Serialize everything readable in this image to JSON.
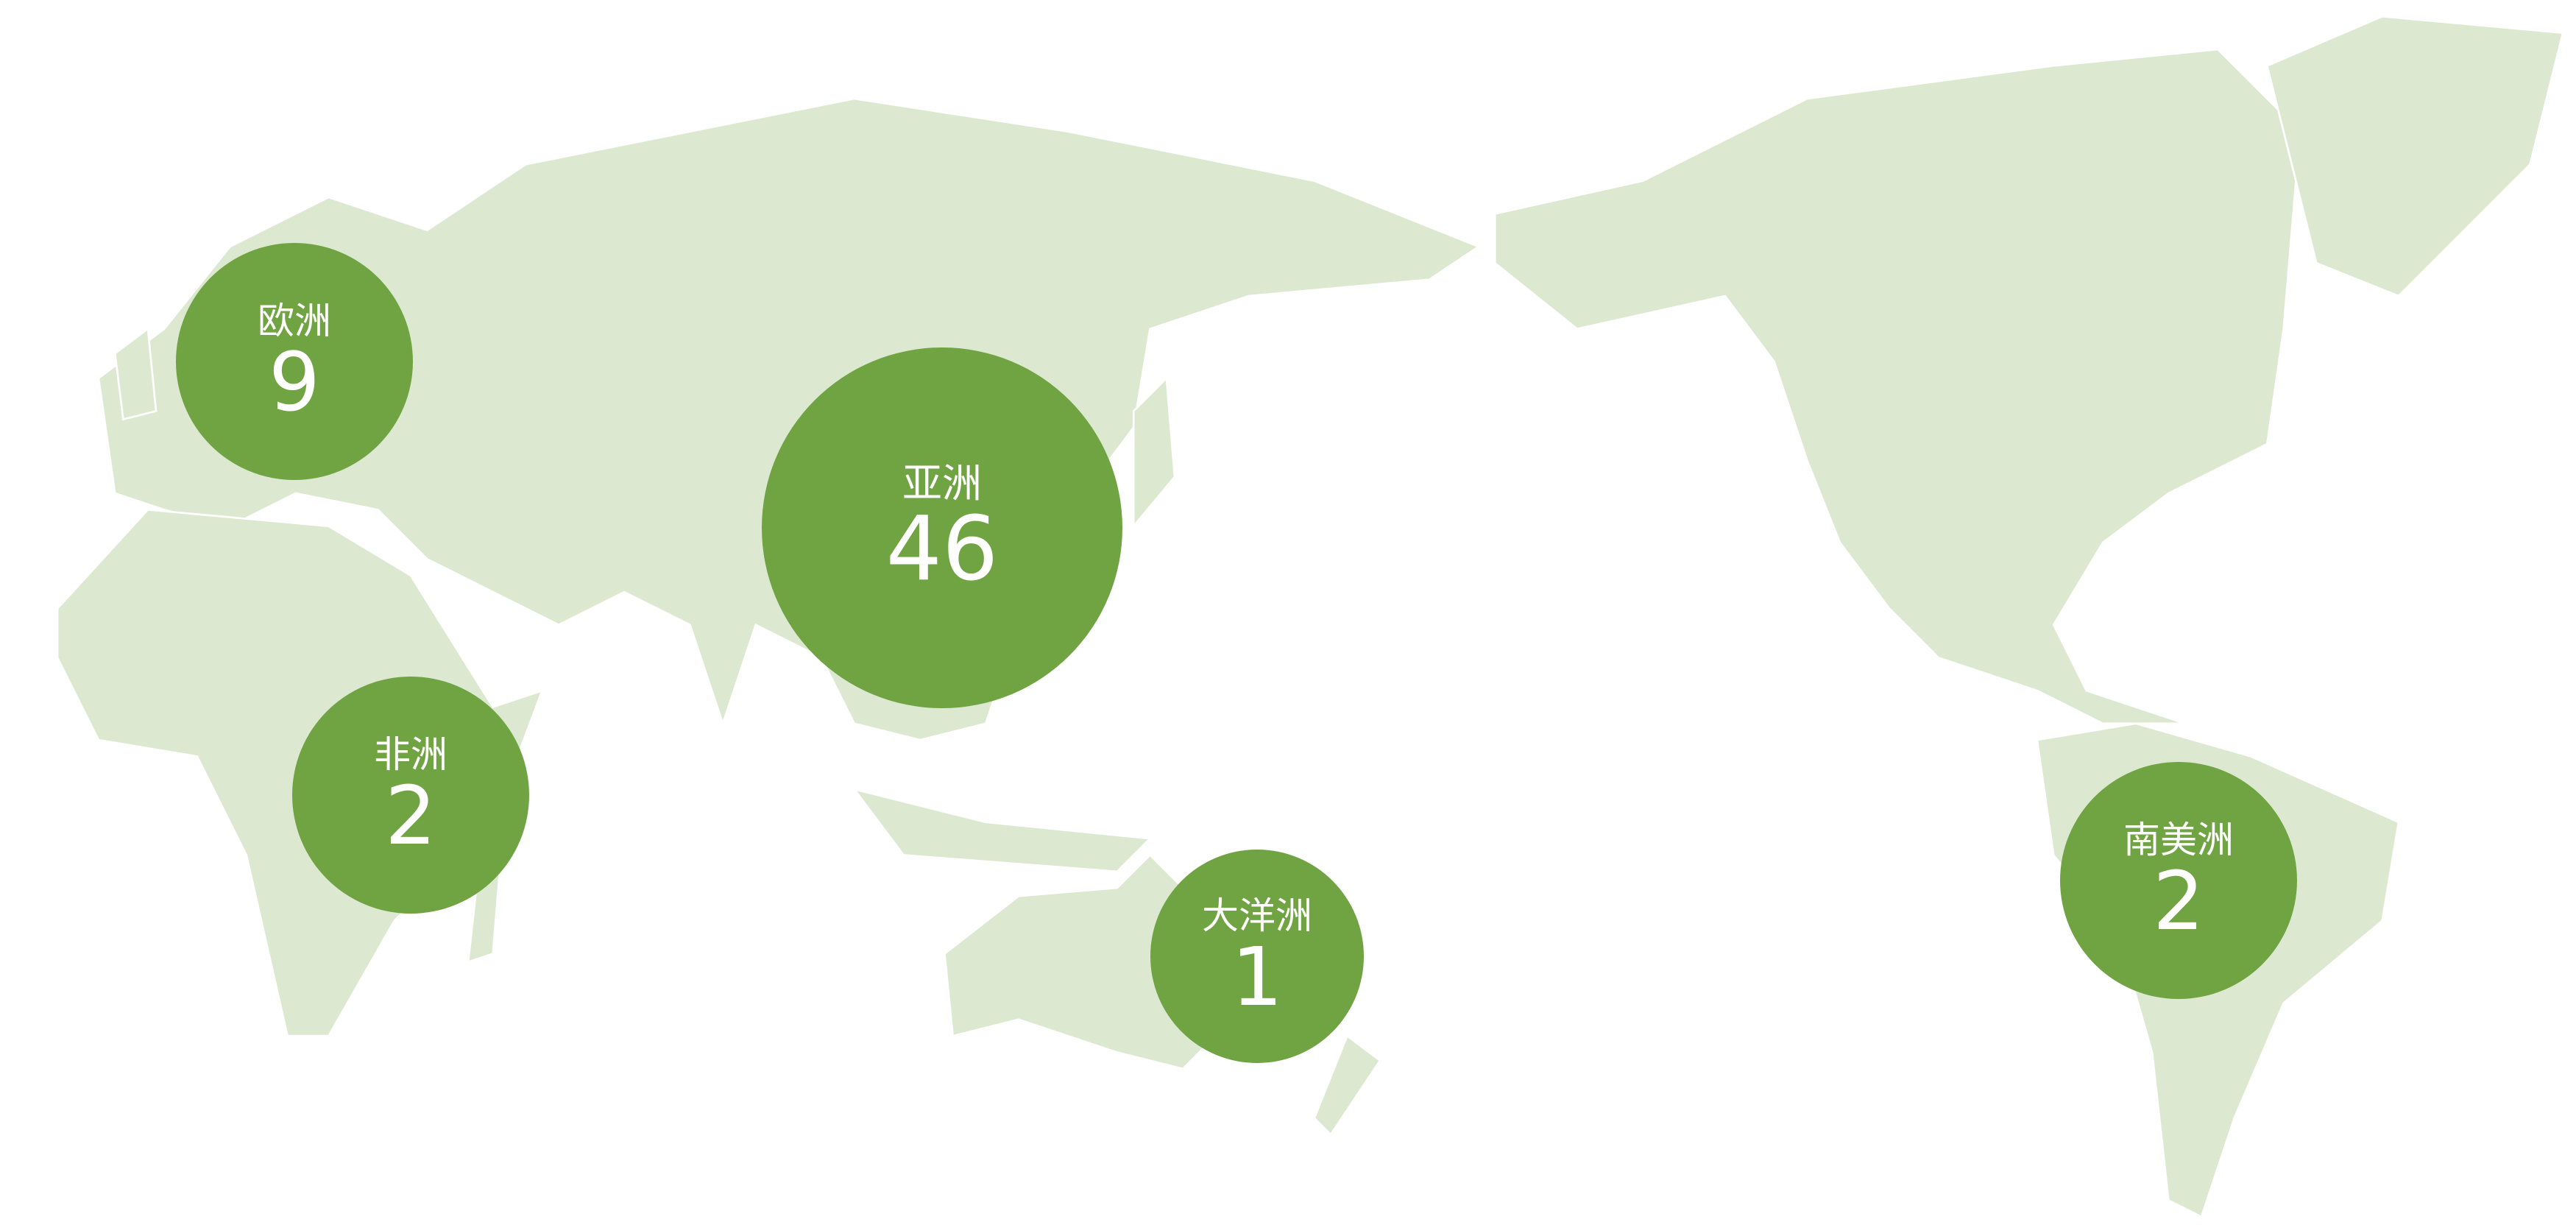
{
  "colors": {
    "bubble": "#70a342",
    "land": "#dce9d0",
    "background": "#ffffff"
  },
  "regions": [
    {
      "id": "europe",
      "name": "欧洲",
      "count": "9"
    },
    {
      "id": "asia",
      "name": "亚洲",
      "count": "46"
    },
    {
      "id": "africa",
      "name": "非洲",
      "count": "2"
    },
    {
      "id": "oceania",
      "name": "大洋洲",
      "count": "1"
    },
    {
      "id": "south-america",
      "name": "南美洲",
      "count": "2"
    }
  ]
}
